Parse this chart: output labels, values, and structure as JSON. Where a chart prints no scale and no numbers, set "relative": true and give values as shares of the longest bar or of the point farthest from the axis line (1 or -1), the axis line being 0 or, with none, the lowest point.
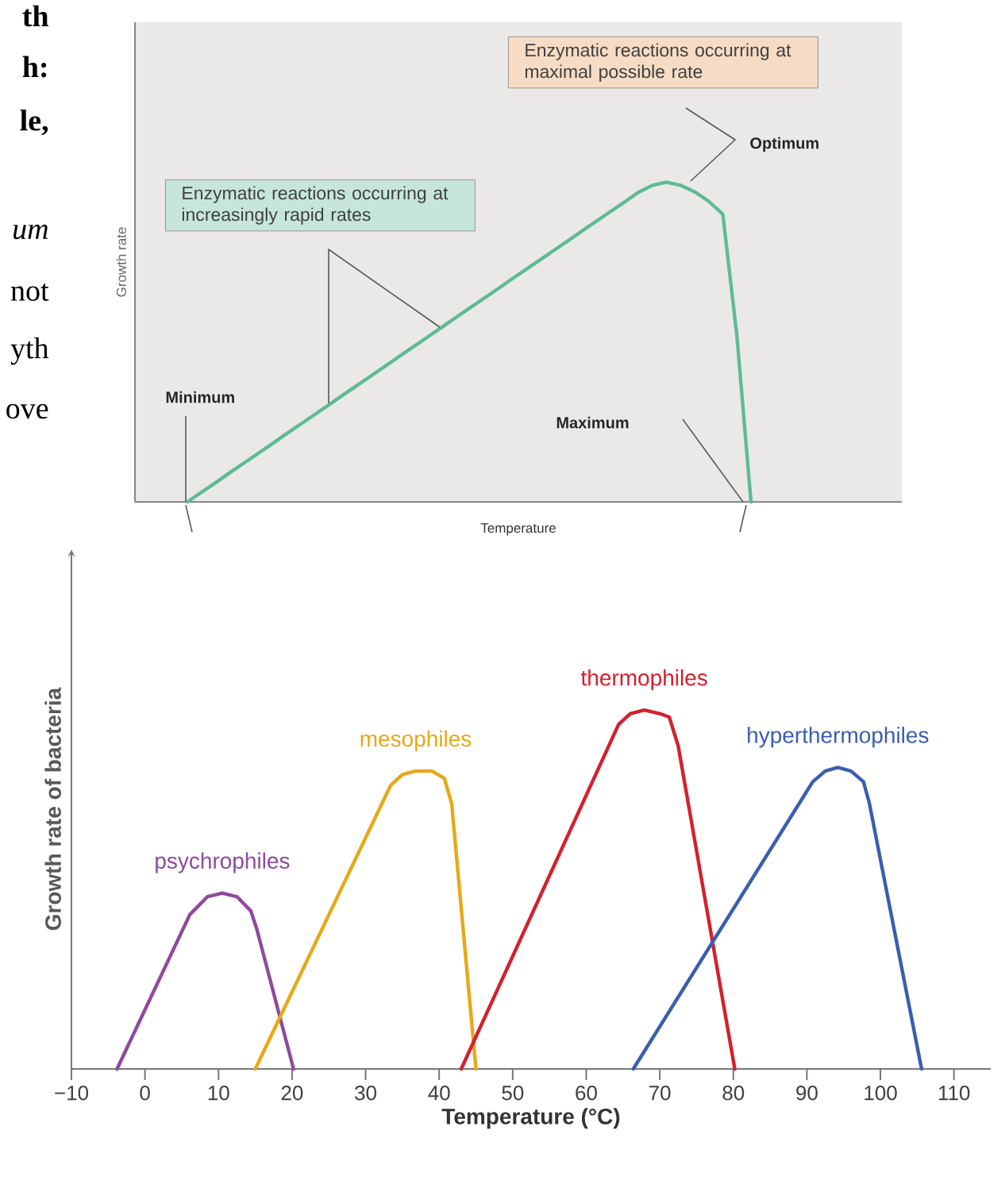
{
  "chart_data": [
    {
      "type": "line",
      "relative": true,
      "xlabel": "Temperature",
      "ylabel": "Growth rate",
      "marker": "none",
      "line_style": "solid",
      "categories": [
        null,
        null,
        null,
        null,
        null,
        null,
        null,
        null,
        null,
        null,
        null,
        null,
        null,
        null,
        null,
        null,
        null,
        null,
        null,
        null,
        null,
        null,
        null,
        null,
        null,
        null,
        null,
        null,
        null,
        null,
        null,
        null,
        null,
        null,
        null,
        null,
        null,
        null,
        null,
        null,
        null
      ],
      "series": [
        {
          "color": "#5fbb95",
          "values": [
            0,
            0.03,
            0.06,
            0.091,
            0.121,
            0.151,
            0.181,
            0.212,
            0.242,
            0.272,
            0.302,
            0.333,
            0.363,
            0.393,
            0.423,
            0.454,
            0.484,
            0.514,
            0.544,
            0.575,
            0.605,
            0.635,
            0.665,
            0.696,
            0.726,
            0.756,
            0.786,
            0.816,
            0.847,
            0.877,
            0.907,
            0.937,
            0.968,
            0.99,
            1,
            0.99,
            0.97,
            0.94,
            0.9,
            0.52,
            0
          ]
        }
      ],
      "annotations": [
        "Enzymatic reactions occurring at maximal possible rate",
        "Optimum",
        "Enzymatic reactions occurring at increasingly rapid rates",
        "Minimum",
        "Maximum",
        "th",
        "h:",
        "le,",
        "um",
        "not",
        "yth",
        "ove"
      ]
    },
    {
      "type": "line",
      "relative": true,
      "xlabel": "Temperature (°C)",
      "ylabel": "Growth rate of bacteria",
      "marker": "none",
      "line_style": "solid",
      "xlim": [
        -10,
        115
      ],
      "xticks": [
        {
          "value": -10,
          "label": "−10"
        },
        0,
        10,
        20,
        30,
        40,
        50,
        60,
        70,
        80,
        90,
        100,
        110
      ],
      "series": [
        {
          "name": "psychrophiles",
          "color": "#8e4a9e",
          "x": [
            -3.8,
            6.1,
            8.5,
            10.5,
            12.5,
            14.4,
            15.2,
            20.2
          ],
          "values": [
            0,
            0.43,
            0.48,
            0.49,
            0.48,
            0.44,
            0.39,
            0
          ]
        },
        {
          "name": "mesophiles",
          "color": "#e8a817",
          "x": [
            15,
            33.4,
            35,
            36.8,
            39,
            40.7,
            41.7,
            45
          ],
          "values": [
            0,
            0.79,
            0.82,
            0.83,
            0.83,
            0.81,
            0.74,
            0
          ]
        },
        {
          "name": "thermophiles",
          "color": "#d3202e",
          "x": [
            43,
            64.4,
            66,
            67.9,
            70,
            71.3,
            72.5,
            80.2
          ],
          "values": [
            0,
            0.96,
            0.99,
            1,
            0.99,
            0.98,
            0.9,
            0
          ]
        },
        {
          "name": "hyperthermophiles",
          "color": "#3a5db0",
          "x": [
            66.4,
            90.8,
            92.5,
            94.2,
            96,
            97.7,
            98.5,
            105.6
          ],
          "values": [
            0,
            0.8,
            0.83,
            0.84,
            0.83,
            0.8,
            0.74,
            0
          ]
        }
      ]
    }
  ]
}
